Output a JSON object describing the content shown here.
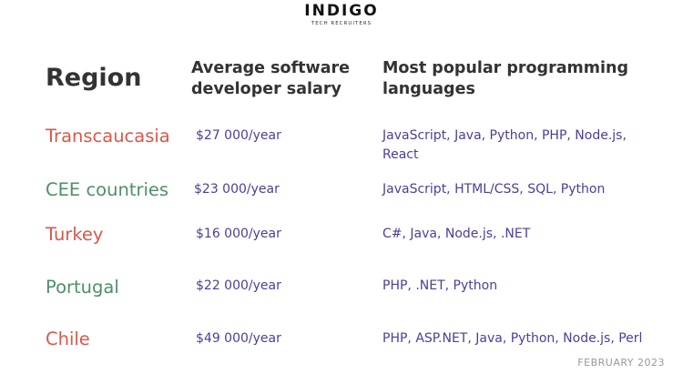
{
  "logo": {
    "main": "INDIGO",
    "sub": "TECH RECRUITERS"
  },
  "headers": {
    "region": "Region",
    "salary": "Average software developer salary",
    "languages": "Most popular programming languages"
  },
  "colors": {
    "red": "#d9584a",
    "green": "#4f8f6a",
    "purple": "#4a3f9a"
  },
  "rows": [
    {
      "region": "Transcaucasia",
      "color": "#d9584a",
      "salary": "$27 000/year",
      "languages": "JavaScript, Java, Python, PHP, Node.js, React"
    },
    {
      "region": "CEE countries",
      "color": "#4f8f6a",
      "salary": "$23 000/year",
      "languages": "JavaScript, HTML/CSS, SQL, Python"
    },
    {
      "region": "Turkey",
      "color": "#d9584a",
      "salary": "$16 000/year",
      "languages": "C#, Java, Node.js, .NET"
    },
    {
      "region": "Portugal",
      "color": "#4f8f6a",
      "salary": "$22 000/year",
      "languages": "PHP, .NET, Python"
    },
    {
      "region": "Chile",
      "color": "#d9584a",
      "salary": "$49 000/year",
      "languages": "PHP, ASP.NET, Java, Python, Node.js, Perl"
    }
  ],
  "footer": "FEBRUARY 2023"
}
